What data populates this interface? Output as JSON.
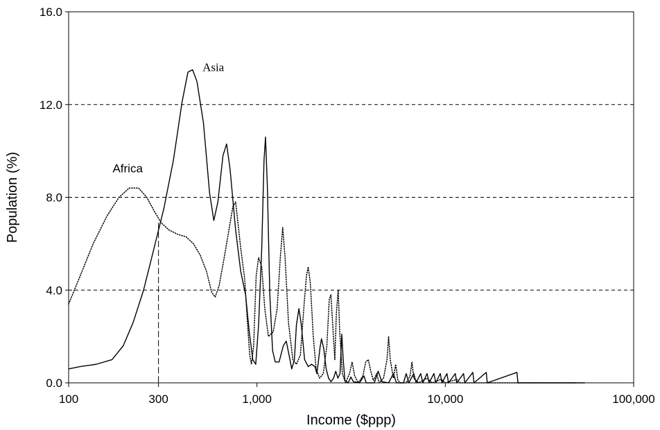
{
  "chart_data": {
    "type": "line",
    "xlabel": "Income ($ppp)",
    "ylabel": "Population (%)",
    "x_scale": "log",
    "xlim": [
      100,
      100000
    ],
    "ylim": [
      0,
      16
    ],
    "x_ticks": [
      100,
      300,
      1000,
      10000,
      100000
    ],
    "x_tick_labels": [
      "100",
      "300",
      "1,000",
      "10,000",
      "100,000"
    ],
    "y_ticks": [
      0,
      4,
      8,
      12,
      16
    ],
    "y_tick_labels": [
      "0.0",
      "4.0",
      "8.0",
      "12.0",
      "16.0"
    ],
    "grid": "horizontal dashed",
    "reference_line": {
      "x": 300
    },
    "annotations": [
      {
        "text": "Asia",
        "series": "asia"
      },
      {
        "text": "Africa",
        "series": "africa"
      }
    ],
    "colors": {
      "line": "#000000",
      "grid": "#000000"
    },
    "series": [
      {
        "key": "asia",
        "style": "solid",
        "points": [
          [
            100,
            0.6
          ],
          [
            115,
            0.7
          ],
          [
            140,
            0.8
          ],
          [
            170,
            1.0
          ],
          [
            195,
            1.6
          ],
          [
            220,
            2.6
          ],
          [
            250,
            4.0
          ],
          [
            280,
            5.6
          ],
          [
            320,
            7.5
          ],
          [
            360,
            9.6
          ],
          [
            400,
            12.1
          ],
          [
            430,
            13.4
          ],
          [
            455,
            13.5
          ],
          [
            480,
            13.0
          ],
          [
            520,
            11.2
          ],
          [
            560,
            8.2
          ],
          [
            590,
            7.0
          ],
          [
            620,
            7.8
          ],
          [
            660,
            9.8
          ],
          [
            690,
            10.3
          ],
          [
            720,
            9.2
          ],
          [
            770,
            6.6
          ],
          [
            820,
            4.8
          ],
          [
            870,
            3.8
          ],
          [
            910,
            2.2
          ],
          [
            950,
            1.0
          ],
          [
            985,
            0.8
          ],
          [
            1020,
            2.5
          ],
          [
            1060,
            5.8
          ],
          [
            1090,
            9.6
          ],
          [
            1110,
            10.6
          ],
          [
            1135,
            8.5
          ],
          [
            1170,
            3.8
          ],
          [
            1210,
            1.4
          ],
          [
            1250,
            0.9
          ],
          [
            1310,
            0.9
          ],
          [
            1380,
            1.6
          ],
          [
            1430,
            1.8
          ],
          [
            1480,
            1.2
          ],
          [
            1530,
            0.6
          ],
          [
            1580,
            1.0
          ],
          [
            1620,
            2.5
          ],
          [
            1670,
            3.2
          ],
          [
            1720,
            2.5
          ],
          [
            1790,
            1.0
          ],
          [
            1870,
            0.7
          ],
          [
            1950,
            0.8
          ],
          [
            2030,
            0.7
          ],
          [
            2080,
            0.4
          ],
          [
            2110,
            0.8
          ],
          [
            2160,
            1.5
          ],
          [
            2200,
            1.9
          ],
          [
            2260,
            1.5
          ],
          [
            2330,
            0.6
          ],
          [
            2400,
            0.2
          ],
          [
            2470,
            0.05
          ],
          [
            2550,
            0.2
          ],
          [
            2620,
            0.5
          ],
          [
            2690,
            0.2
          ],
          [
            2760,
            0.4
          ],
          [
            2820,
            2.1
          ],
          [
            2870,
            1.0
          ],
          [
            2930,
            0.1
          ],
          [
            3050,
            0.0
          ],
          [
            3150,
            0.25
          ],
          [
            3250,
            0.05
          ],
          [
            3500,
            0.0
          ],
          [
            3700,
            0.3
          ],
          [
            3800,
            0.0
          ],
          [
            4200,
            0.0
          ],
          [
            4400,
            0.5
          ],
          [
            4600,
            0.05
          ],
          [
            5000,
            0.0
          ],
          [
            5300,
            0.4
          ],
          [
            5500,
            0.0
          ],
          [
            6000,
            0.0
          ],
          [
            6200,
            0.4
          ],
          [
            6400,
            0.0
          ],
          [
            6800,
            0.4
          ],
          [
            7000,
            0.0
          ],
          [
            7400,
            0.4
          ],
          [
            7600,
            0.0
          ],
          [
            8000,
            0.4
          ],
          [
            8200,
            0.0
          ],
          [
            8700,
            0.4
          ],
          [
            8900,
            0.0
          ],
          [
            9400,
            0.4
          ],
          [
            9600,
            0.0
          ],
          [
            10200,
            0.4
          ],
          [
            10400,
            0.0
          ],
          [
            11300,
            0.4
          ],
          [
            11500,
            0.0
          ],
          [
            12500,
            0.4
          ],
          [
            12700,
            0.0
          ],
          [
            14000,
            0.45
          ],
          [
            14200,
            0.0
          ],
          [
            16500,
            0.45
          ],
          [
            16700,
            0.0
          ],
          [
            24000,
            0.45
          ],
          [
            24300,
            0.0
          ],
          [
            55000,
            0.0
          ]
        ]
      },
      {
        "key": "africa",
        "style": "dotted",
        "points": [
          [
            100,
            3.4
          ],
          [
            115,
            4.6
          ],
          [
            135,
            6.0
          ],
          [
            160,
            7.2
          ],
          [
            185,
            8.0
          ],
          [
            210,
            8.4
          ],
          [
            235,
            8.4
          ],
          [
            260,
            8.0
          ],
          [
            285,
            7.4
          ],
          [
            310,
            6.9
          ],
          [
            340,
            6.6
          ],
          [
            380,
            6.4
          ],
          [
            420,
            6.3
          ],
          [
            460,
            6.0
          ],
          [
            500,
            5.5
          ],
          [
            540,
            4.8
          ],
          [
            575,
            3.9
          ],
          [
            600,
            3.7
          ],
          [
            630,
            4.2
          ],
          [
            670,
            5.4
          ],
          [
            710,
            6.6
          ],
          [
            745,
            7.6
          ],
          [
            770,
            7.8
          ],
          [
            790,
            7.0
          ],
          [
            820,
            5.8
          ],
          [
            860,
            4.5
          ],
          [
            890,
            2.6
          ],
          [
            915,
            1.2
          ],
          [
            935,
            0.8
          ],
          [
            960,
            1.6
          ],
          [
            990,
            4.6
          ],
          [
            1020,
            5.4
          ],
          [
            1060,
            5.0
          ],
          [
            1100,
            3.2
          ],
          [
            1150,
            2.0
          ],
          [
            1220,
            2.2
          ],
          [
            1280,
            3.2
          ],
          [
            1330,
            5.4
          ],
          [
            1370,
            6.7
          ],
          [
            1410,
            5.4
          ],
          [
            1470,
            2.6
          ],
          [
            1550,
            1.0
          ],
          [
            1620,
            0.8
          ],
          [
            1700,
            1.2
          ],
          [
            1780,
            3.4
          ],
          [
            1830,
            4.6
          ],
          [
            1870,
            5.0
          ],
          [
            1920,
            4.3
          ],
          [
            1990,
            2.0
          ],
          [
            2060,
            0.6
          ],
          [
            2150,
            0.2
          ],
          [
            2250,
            0.4
          ],
          [
            2350,
            1.6
          ],
          [
            2420,
            3.6
          ],
          [
            2470,
            3.8
          ],
          [
            2520,
            2.6
          ],
          [
            2590,
            1.0
          ],
          [
            2640,
            3.0
          ],
          [
            2700,
            4.0
          ],
          [
            2750,
            2.2
          ],
          [
            2840,
            0.4
          ],
          [
            2950,
            0.0
          ],
          [
            3100,
            0.4
          ],
          [
            3200,
            0.9
          ],
          [
            3300,
            0.3
          ],
          [
            3450,
            0.0
          ],
          [
            3650,
            0.3
          ],
          [
            3780,
            0.9
          ],
          [
            3900,
            1.0
          ],
          [
            4020,
            0.5
          ],
          [
            4150,
            0.1
          ],
          [
            4320,
            0.4
          ],
          [
            4450,
            0.0
          ],
          [
            4700,
            0.2
          ],
          [
            4900,
            1.0
          ],
          [
            5000,
            2.0
          ],
          [
            5100,
            1.0
          ],
          [
            5300,
            0.2
          ],
          [
            5450,
            0.8
          ],
          [
            5600,
            0.1
          ],
          [
            5800,
            0.0
          ],
          [
            6200,
            0.0
          ],
          [
            6500,
            0.3
          ],
          [
            6650,
            0.9
          ],
          [
            6800,
            0.2
          ],
          [
            7200,
            0.0
          ],
          [
            8000,
            0.2
          ],
          [
            8500,
            0.0
          ],
          [
            9500,
            0.15
          ],
          [
            10000,
            0.0
          ],
          [
            11500,
            0.15
          ],
          [
            12000,
            0.0
          ],
          [
            20000,
            0.0
          ],
          [
            50000,
            0.0
          ]
        ]
      }
    ]
  }
}
